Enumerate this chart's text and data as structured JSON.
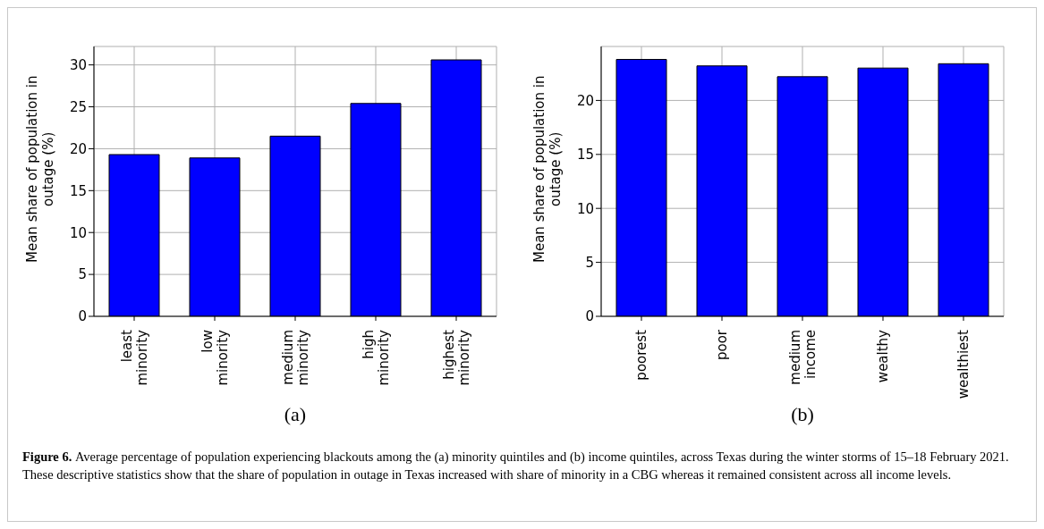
{
  "chart_data": [
    {
      "type": "bar",
      "categories": [
        "least minority",
        "low minority",
        "medium minority",
        "high minority",
        "highest minority"
      ],
      "values": [
        19.3,
        18.9,
        21.5,
        25.4,
        30.6
      ],
      "color": "#0000ff",
      "ylabel": "Mean share of population in outage (%)",
      "ylim": [
        0,
        32.2
      ],
      "yticks": [
        0,
        5,
        10,
        15,
        20,
        25,
        30
      ],
      "grid": true,
      "annotations": [
        "(a)"
      ]
    },
    {
      "type": "bar",
      "categories": [
        "poorest",
        "poor",
        "medium income",
        "wealthy",
        "wealthiest"
      ],
      "values": [
        23.8,
        23.2,
        22.2,
        23.0,
        23.4
      ],
      "color": "#0000ff",
      "ylabel": "Mean share of population in outage (%)",
      "ylim": [
        0,
        25
      ],
      "yticks": [
        0,
        5,
        10,
        15,
        20
      ],
      "grid": true,
      "annotations": [
        "(b)",
        "Figure 6.",
        "Average percentage of population experiencing blackouts among the (a) minority quintiles and (b) income quintiles, across Texas during the winter storms of 15–18 February 2021. These descriptive statistics show that the share of population in outage in Texas increased with share of minority in a CBG whereas it remained consistent across all income levels."
      ]
    }
  ]
}
